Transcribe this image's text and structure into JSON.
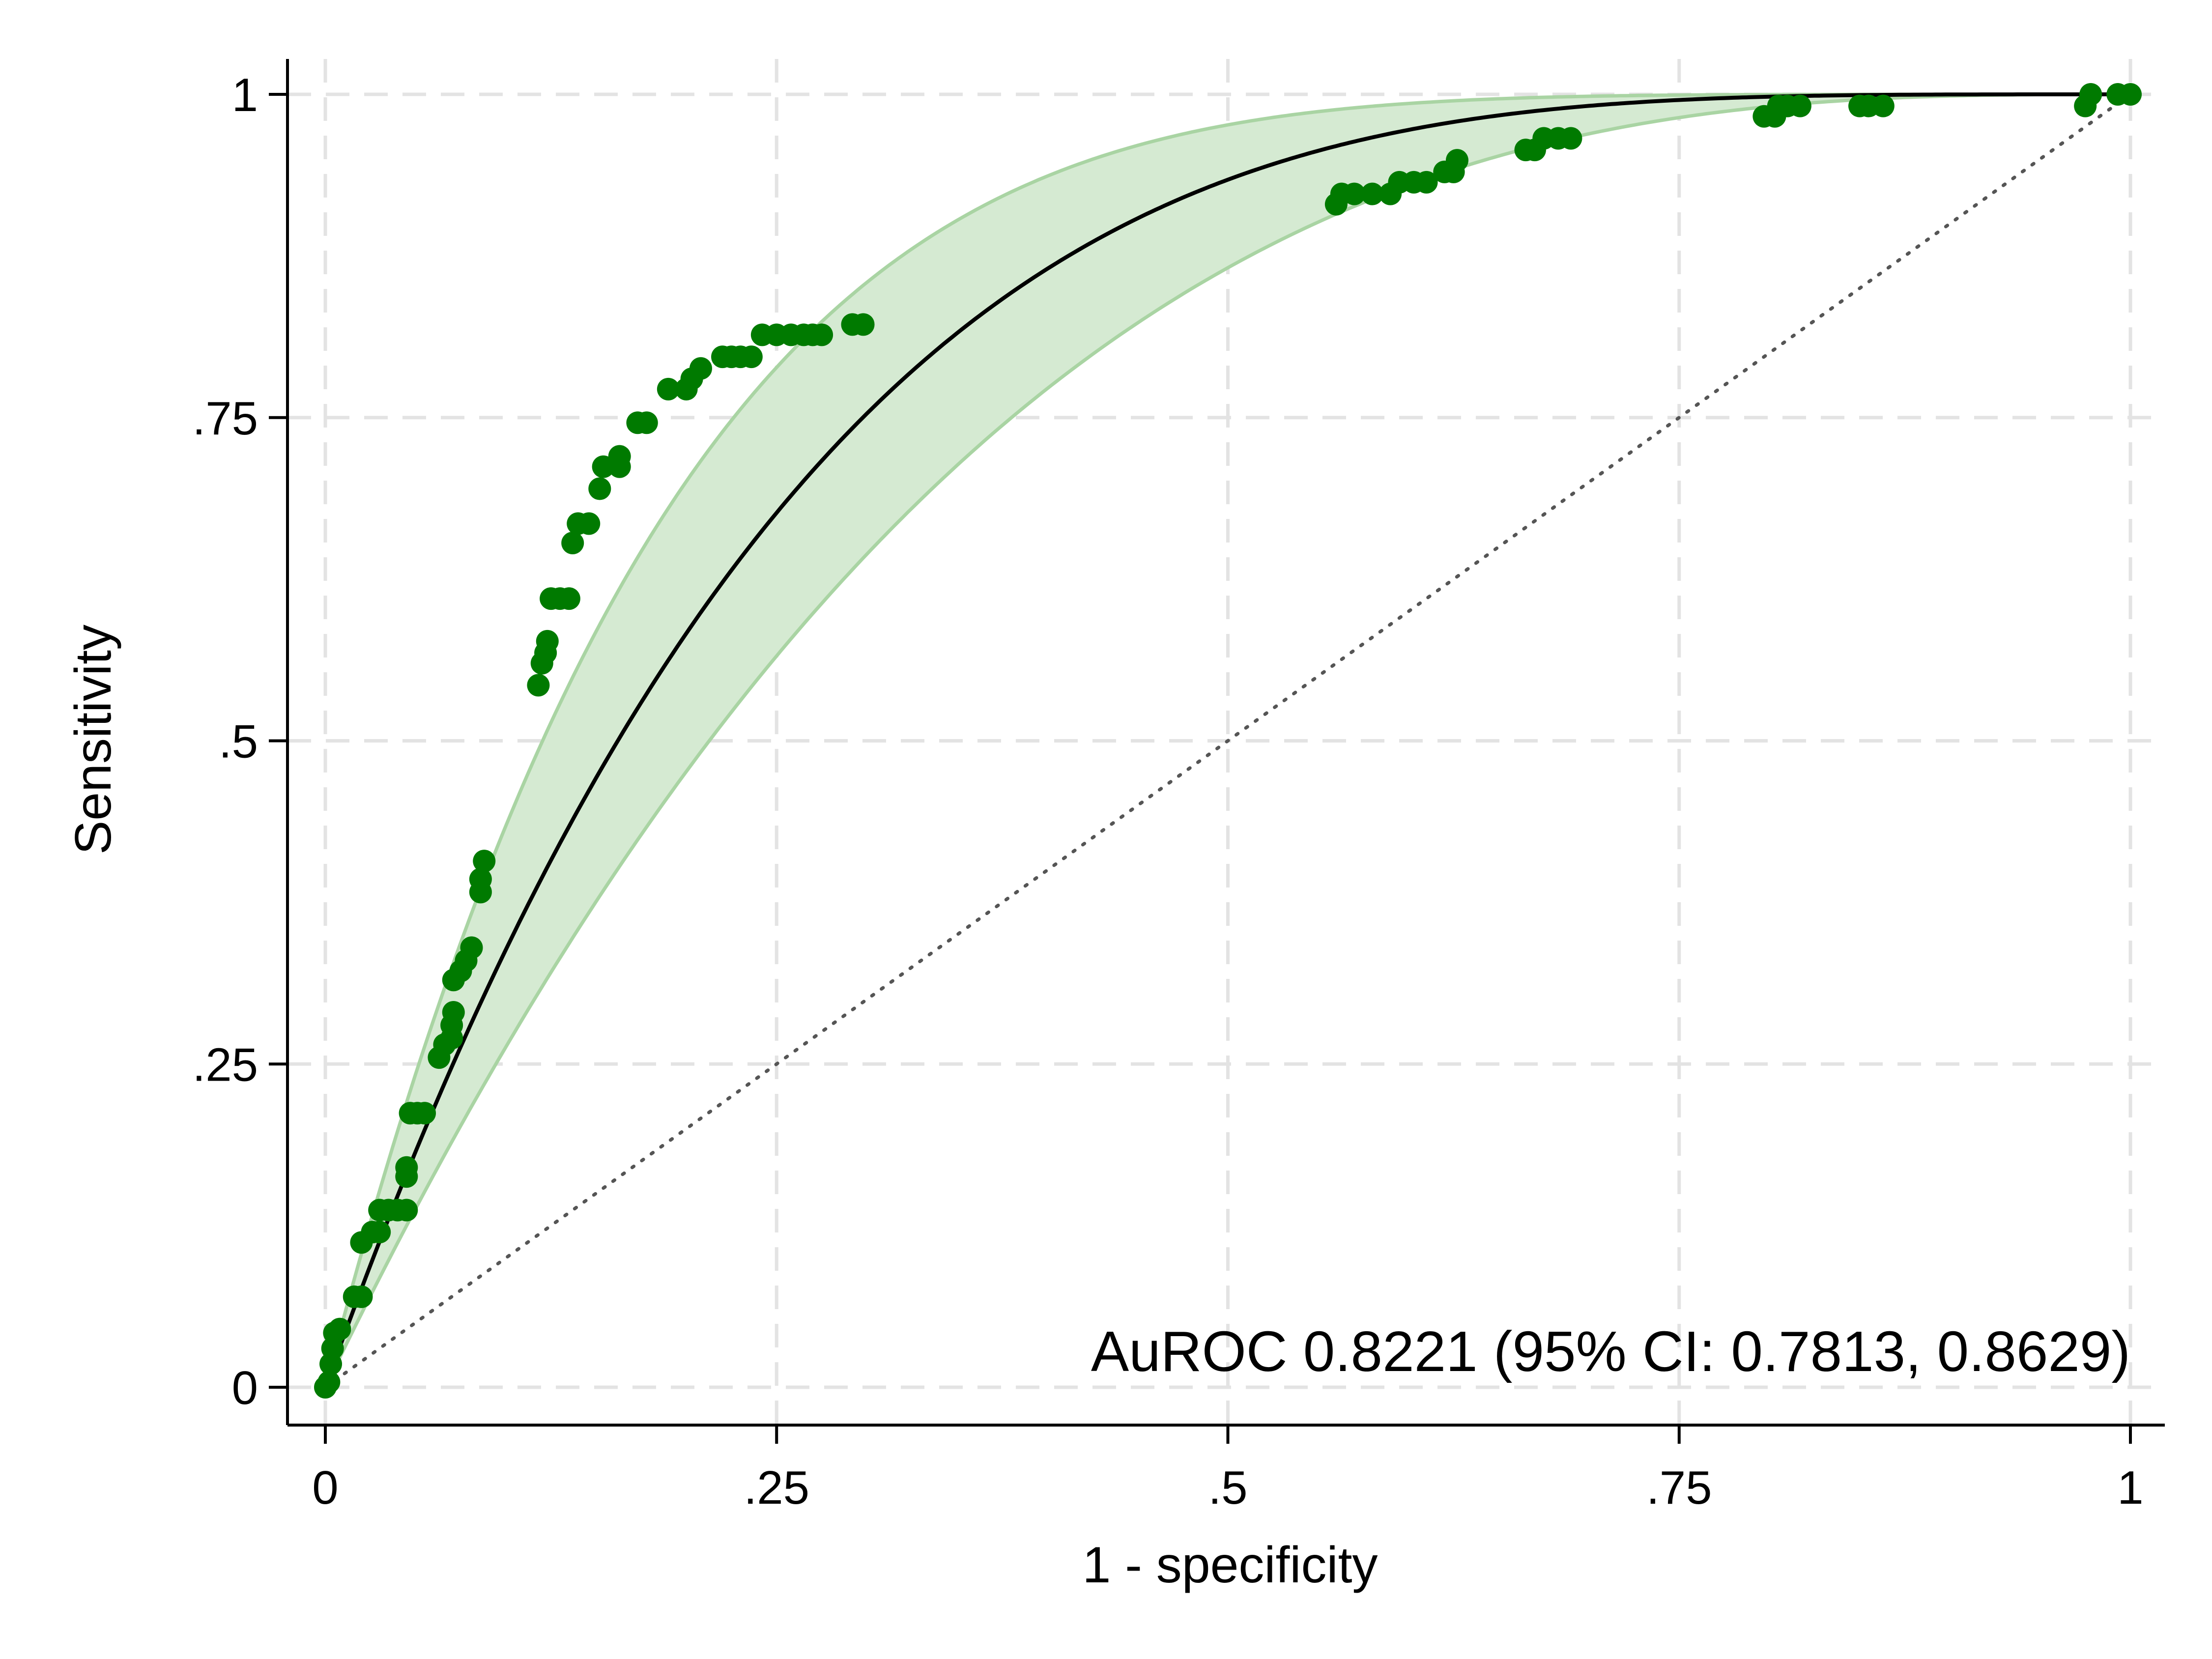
{
  "chart_data": {
    "type": "scatter",
    "xlabel": "1 - specificity",
    "ylabel": "Sensitivity",
    "xlim": [
      0,
      1
    ],
    "ylim": [
      0,
      1
    ],
    "x_ticks": [
      0,
      0.25,
      0.5,
      0.75,
      1
    ],
    "x_tick_labels": [
      "0",
      ".25",
      ".5",
      ".75",
      "1"
    ],
    "y_ticks": [
      0,
      0.25,
      0.5,
      0.75,
      1
    ],
    "y_tick_labels": [
      "0",
      ".25",
      ".5",
      ".75",
      "1"
    ],
    "grid": true,
    "annotation": "AuROC 0.8221 (95% CI: 0.7813, 0.8629)",
    "colors": {
      "points": "#007a00",
      "fit_line": "#000000",
      "ci_band_fill": "#d5ead2",
      "ci_band_edge": "#a9d4a3",
      "reference_line": "#555555",
      "grid": "#e3e3e3"
    },
    "fitted_curve_exponent": 0.255,
    "ci_band_exponents": [
      0.185,
      0.345
    ],
    "points": [
      {
        "x": 0.0,
        "y": 0.0
      },
      {
        "x": 0.002,
        "y": 0.004
      },
      {
        "x": 0.003,
        "y": 0.018
      },
      {
        "x": 0.004,
        "y": 0.03
      },
      {
        "x": 0.005,
        "y": 0.042
      },
      {
        "x": 0.008,
        "y": 0.045
      },
      {
        "x": 0.016,
        "y": 0.07
      },
      {
        "x": 0.02,
        "y": 0.07
      },
      {
        "x": 0.02,
        "y": 0.112
      },
      {
        "x": 0.026,
        "y": 0.12
      },
      {
        "x": 0.03,
        "y": 0.12
      },
      {
        "x": 0.03,
        "y": 0.137
      },
      {
        "x": 0.035,
        "y": 0.137
      },
      {
        "x": 0.04,
        "y": 0.137
      },
      {
        "x": 0.045,
        "y": 0.137
      },
      {
        "x": 0.045,
        "y": 0.163
      },
      {
        "x": 0.045,
        "y": 0.17
      },
      {
        "x": 0.047,
        "y": 0.212
      },
      {
        "x": 0.051,
        "y": 0.212
      },
      {
        "x": 0.055,
        "y": 0.212
      },
      {
        "x": 0.063,
        "y": 0.255
      },
      {
        "x": 0.066,
        "y": 0.265
      },
      {
        "x": 0.07,
        "y": 0.27
      },
      {
        "x": 0.07,
        "y": 0.28
      },
      {
        "x": 0.071,
        "y": 0.29
      },
      {
        "x": 0.071,
        "y": 0.315
      },
      {
        "x": 0.075,
        "y": 0.322
      },
      {
        "x": 0.078,
        "y": 0.33
      },
      {
        "x": 0.081,
        "y": 0.34
      },
      {
        "x": 0.086,
        "y": 0.383
      },
      {
        "x": 0.086,
        "y": 0.393
      },
      {
        "x": 0.088,
        "y": 0.407
      },
      {
        "x": 0.118,
        "y": 0.543
      },
      {
        "x": 0.12,
        "y": 0.56
      },
      {
        "x": 0.122,
        "y": 0.568
      },
      {
        "x": 0.123,
        "y": 0.577
      },
      {
        "x": 0.125,
        "y": 0.61
      },
      {
        "x": 0.13,
        "y": 0.61
      },
      {
        "x": 0.135,
        "y": 0.61
      },
      {
        "x": 0.137,
        "y": 0.653
      },
      {
        "x": 0.14,
        "y": 0.668
      },
      {
        "x": 0.146,
        "y": 0.668
      },
      {
        "x": 0.152,
        "y": 0.695
      },
      {
        "x": 0.154,
        "y": 0.712
      },
      {
        "x": 0.163,
        "y": 0.712
      },
      {
        "x": 0.163,
        "y": 0.72
      },
      {
        "x": 0.173,
        "y": 0.746
      },
      {
        "x": 0.178,
        "y": 0.746
      },
      {
        "x": 0.19,
        "y": 0.772
      },
      {
        "x": 0.2,
        "y": 0.772
      },
      {
        "x": 0.203,
        "y": 0.78
      },
      {
        "x": 0.208,
        "y": 0.788
      },
      {
        "x": 0.22,
        "y": 0.797
      },
      {
        "x": 0.225,
        "y": 0.797
      },
      {
        "x": 0.23,
        "y": 0.797
      },
      {
        "x": 0.236,
        "y": 0.797
      },
      {
        "x": 0.242,
        "y": 0.814
      },
      {
        "x": 0.25,
        "y": 0.814
      },
      {
        "x": 0.258,
        "y": 0.814
      },
      {
        "x": 0.265,
        "y": 0.814
      },
      {
        "x": 0.27,
        "y": 0.814
      },
      {
        "x": 0.275,
        "y": 0.814
      },
      {
        "x": 0.292,
        "y": 0.822
      },
      {
        "x": 0.298,
        "y": 0.822
      },
      {
        "x": 0.56,
        "y": 0.915
      },
      {
        "x": 0.563,
        "y": 0.923
      },
      {
        "x": 0.57,
        "y": 0.923
      },
      {
        "x": 0.58,
        "y": 0.923
      },
      {
        "x": 0.59,
        "y": 0.923
      },
      {
        "x": 0.595,
        "y": 0.932
      },
      {
        "x": 0.603,
        "y": 0.932
      },
      {
        "x": 0.61,
        "y": 0.932
      },
      {
        "x": 0.62,
        "y": 0.94
      },
      {
        "x": 0.625,
        "y": 0.94
      },
      {
        "x": 0.627,
        "y": 0.949
      },
      {
        "x": 0.665,
        "y": 0.957
      },
      {
        "x": 0.67,
        "y": 0.957
      },
      {
        "x": 0.675,
        "y": 0.966
      },
      {
        "x": 0.683,
        "y": 0.966
      },
      {
        "x": 0.69,
        "y": 0.966
      },
      {
        "x": 0.797,
        "y": 0.983
      },
      {
        "x": 0.803,
        "y": 0.983
      },
      {
        "x": 0.805,
        "y": 0.991
      },
      {
        "x": 0.81,
        "y": 0.991
      },
      {
        "x": 0.817,
        "y": 0.991
      },
      {
        "x": 0.85,
        "y": 0.991
      },
      {
        "x": 0.855,
        "y": 0.991
      },
      {
        "x": 0.863,
        "y": 0.991
      },
      {
        "x": 0.975,
        "y": 0.991
      },
      {
        "x": 0.978,
        "y": 1.0
      },
      {
        "x": 0.993,
        "y": 1.0
      },
      {
        "x": 1.0,
        "y": 1.0
      }
    ]
  }
}
